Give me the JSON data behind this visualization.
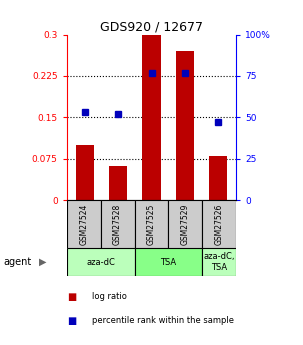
{
  "title": "GDS920 / 12677",
  "samples": [
    "GSM27524",
    "GSM27528",
    "GSM27525",
    "GSM27529",
    "GSM27526"
  ],
  "log_ratio": [
    0.1,
    0.062,
    0.3,
    0.27,
    0.08
  ],
  "percentile_rank": [
    53,
    52,
    77,
    77,
    47
  ],
  "ylim_left": [
    0,
    0.3
  ],
  "ylim_right": [
    0,
    100
  ],
  "yticks_left": [
    0,
    0.075,
    0.15,
    0.225,
    0.3
  ],
  "yticks_right": [
    0,
    25,
    50,
    75,
    100
  ],
  "ytick_labels_left": [
    "0",
    "0.075",
    "0.15",
    "0.225",
    "0.3"
  ],
  "ytick_labels_right": [
    "0",
    "25",
    "50",
    "75",
    "100%"
  ],
  "hlines": [
    0.075,
    0.15,
    0.225
  ],
  "bar_color": "#bb0000",
  "marker_color": "#0000bb",
  "agent_groups": [
    {
      "label": "aza-dC",
      "start": 0,
      "end": 2,
      "color": "#bbffbb"
    },
    {
      "label": "TSA",
      "start": 2,
      "end": 4,
      "color": "#88ff88"
    },
    {
      "label": "aza-dC,\nTSA",
      "start": 4,
      "end": 5,
      "color": "#bbffbb"
    }
  ],
  "sample_box_color": "#cccccc",
  "legend_items": [
    {
      "color": "#bb0000",
      "label": "log ratio"
    },
    {
      "color": "#0000bb",
      "label": "percentile rank within the sample"
    }
  ],
  "bar_width": 0.55,
  "xlim": [
    -0.55,
    4.55
  ]
}
